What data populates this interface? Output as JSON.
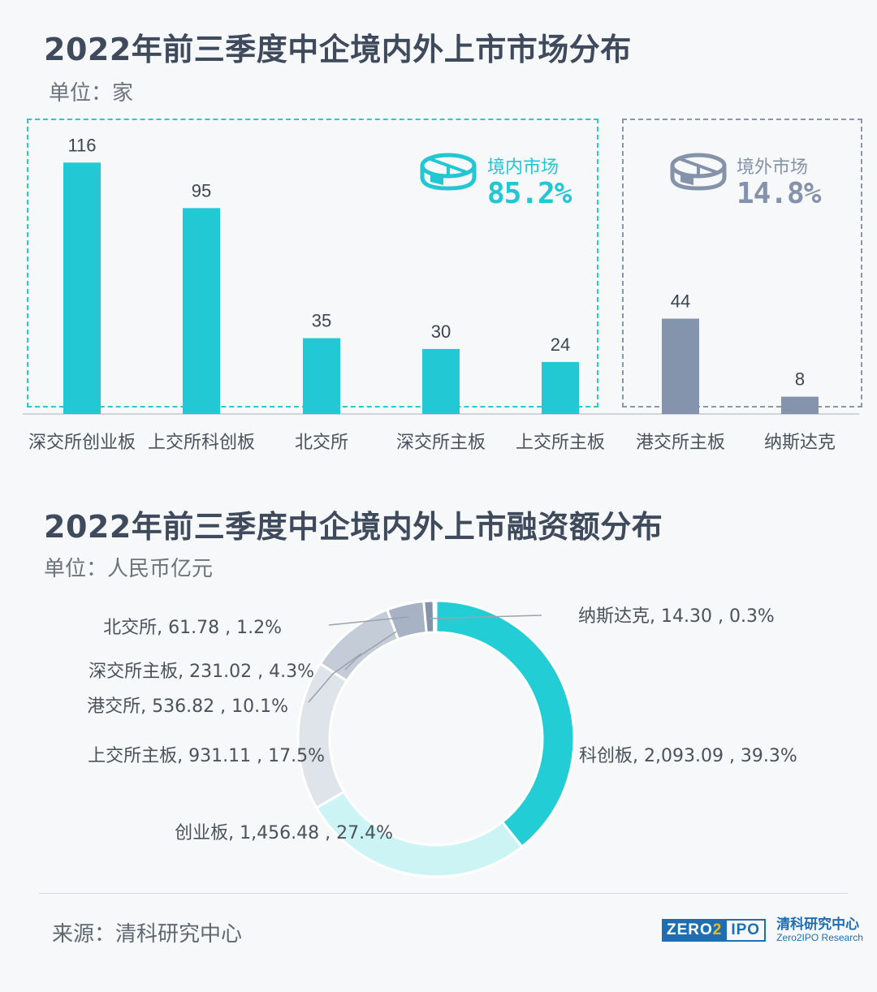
{
  "colors": {
    "domestic": "#22c9d4",
    "overseas": "#8594ad",
    "title": "#3f4b5c"
  },
  "section1": {
    "title": "2022年前三季度中企境内外上市市场分布",
    "unit": "单位：家",
    "domestic": {
      "label": "境内市场",
      "share": "85.2%",
      "icon": "pie-chart-icon"
    },
    "overseas": {
      "label": "境外市场",
      "share": "14.8%",
      "icon": "pie-chart-icon"
    }
  },
  "section2": {
    "title": "2022年前三季度中企境内外上市融资额分布",
    "unit": "单位：人民币亿元"
  },
  "footer": {
    "source": "来源：清科研究中心",
    "logo_mark_left": "ZERO",
    "logo_mark_two": "2",
    "logo_mark_right": "IPO",
    "logo_cn": "清科研究中心",
    "logo_en": "Zero2IPO Research"
  },
  "chart_data": [
    {
      "type": "bar",
      "categories": [
        "深交所创业板",
        "上交所科创板",
        "北交所",
        "深交所主板",
        "上交所主板",
        "港交所主板",
        "纳斯达克"
      ],
      "values": [
        116,
        95,
        35,
        30,
        24,
        44,
        8
      ],
      "groups": [
        "domestic",
        "domestic",
        "domestic",
        "domestic",
        "domestic",
        "overseas",
        "overseas"
      ]
    },
    {
      "type": "pie",
      "donut": true,
      "slices": [
        {
          "label": "科创板",
          "value": 2093.09,
          "value_text": "2,093.09",
          "percent": "39.3%",
          "color": "#22cdd6"
        },
        {
          "label": "创业板",
          "value": 1456.48,
          "value_text": "1,456.48",
          "percent": "27.4%",
          "color": "#cdf4f5"
        },
        {
          "label": "上交所主板",
          "value": 931.11,
          "value_text": "931.11",
          "percent": "17.5%",
          "color": "#dfe3ea"
        },
        {
          "label": "港交所",
          "value": 536.82,
          "value_text": "536.82",
          "percent": "10.1%",
          "color": "#c4ccd8"
        },
        {
          "label": "深交所主板",
          "value": 231.02,
          "value_text": "231.02",
          "percent": "4.3%",
          "color": "#a7b2c4"
        },
        {
          "label": "北交所",
          "value": 61.78,
          "value_text": "61.78",
          "percent": "1.2%",
          "color": "#8593aa"
        },
        {
          "label": "纳斯达克",
          "value": 14.3,
          "value_text": "14.30",
          "percent": "0.3%",
          "color": "#2f3b4e"
        }
      ]
    }
  ]
}
